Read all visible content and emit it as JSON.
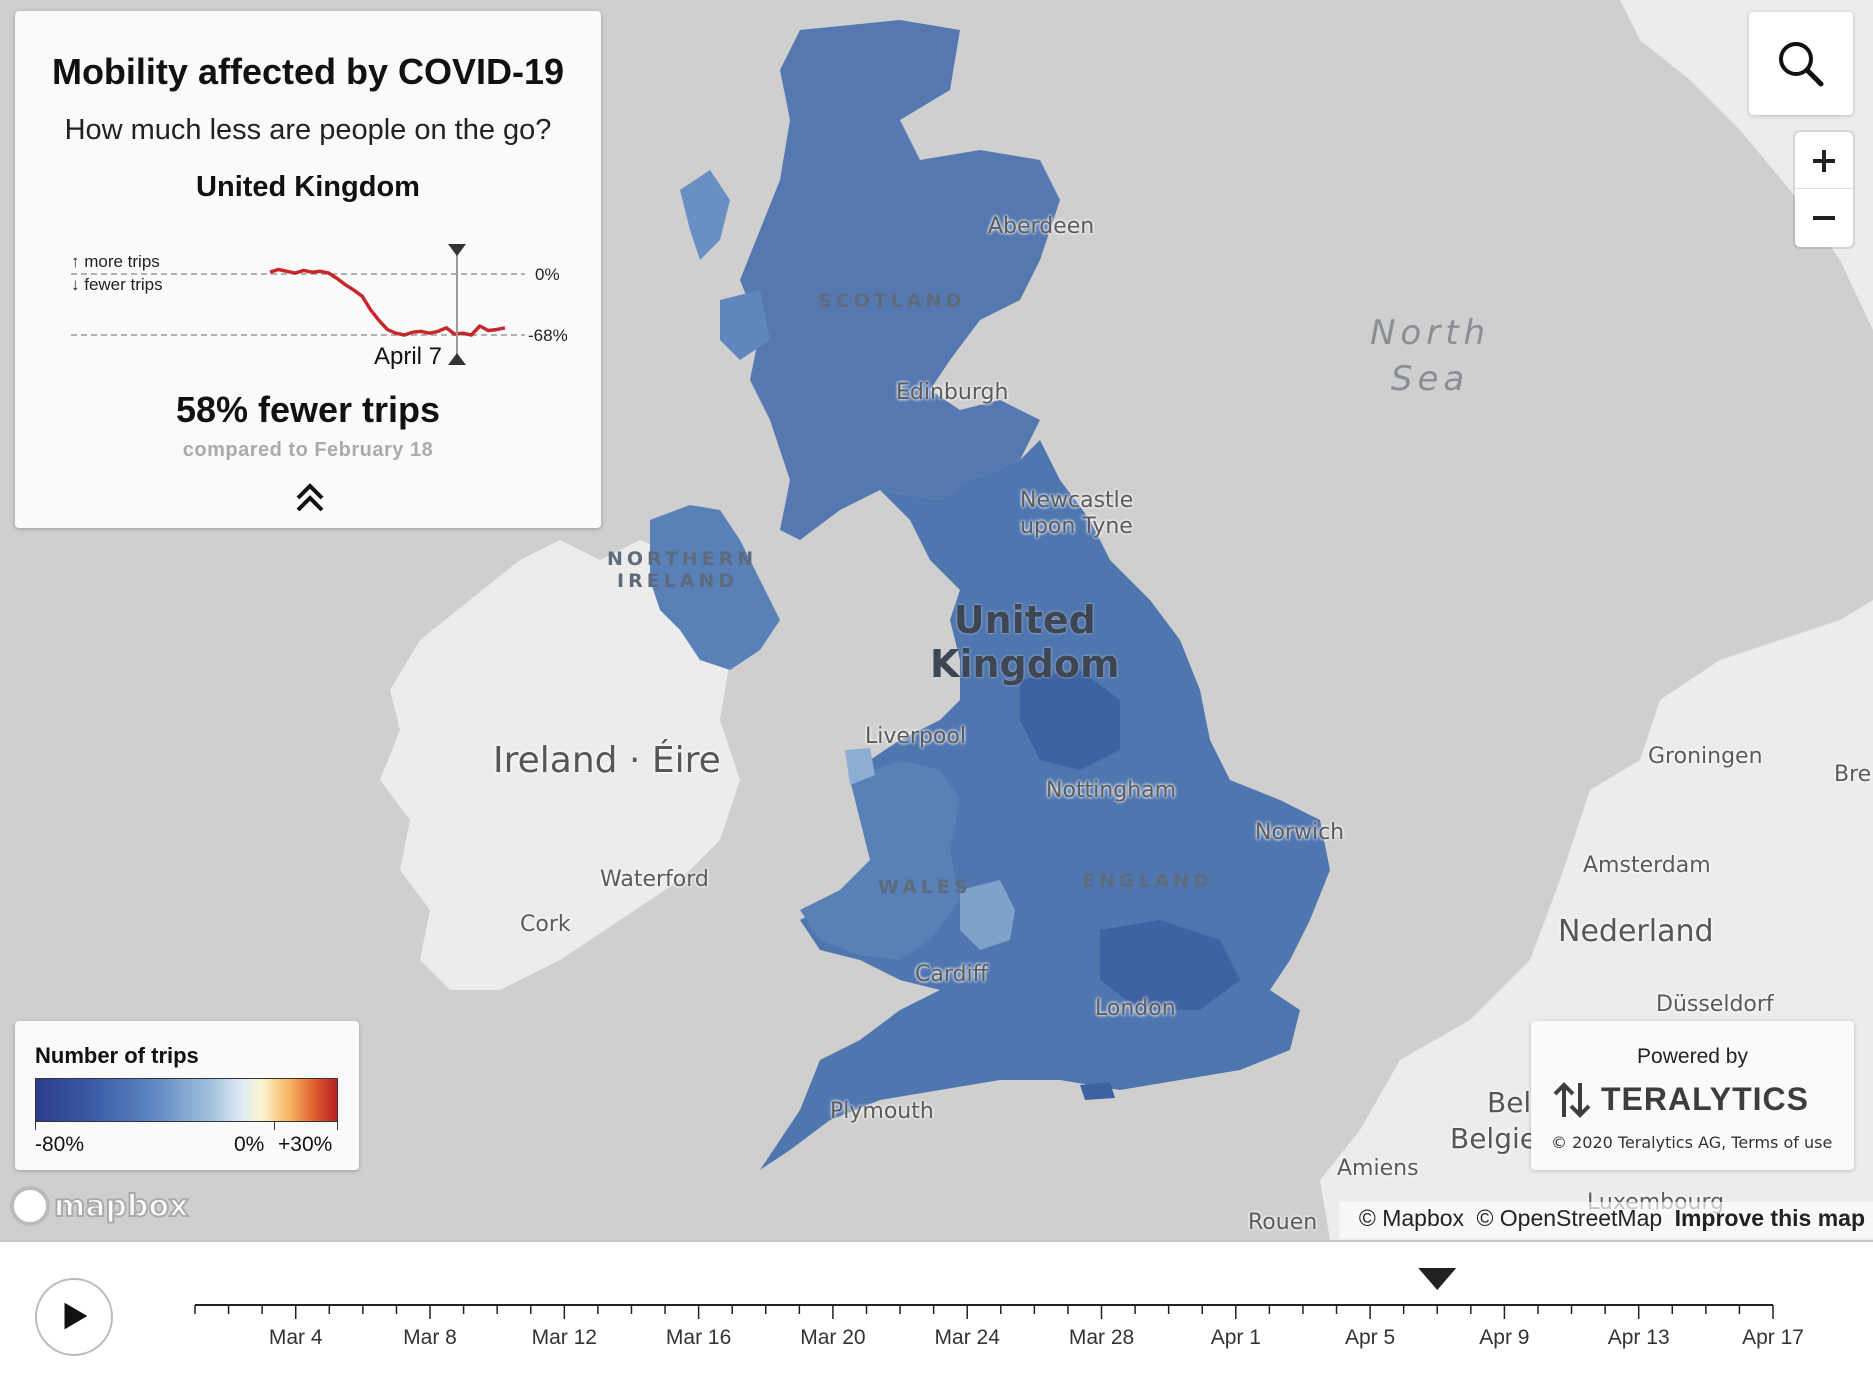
{
  "panel": {
    "title": "Mobility affected by COVID-19",
    "subtitle": "How much less are people on the go?",
    "region": "United Kingdom",
    "sparkline": {
      "more_label": "↑ more trips",
      "fewer_label": "↓ fewer trips",
      "top_ref": "0%",
      "bottom_ref": "-68%",
      "selected_date_label": "April 7",
      "values": [
        2,
        5,
        3,
        1,
        4,
        2,
        3,
        1,
        -5,
        -12,
        -18,
        -25,
        -40,
        -52,
        -62,
        -66,
        -68,
        -65,
        -64,
        -66,
        -64,
        -60,
        -67,
        -66,
        -68,
        -58,
        -63,
        -62,
        -60
      ]
    },
    "headline": "58% fewer trips",
    "comparison": "compared to February 18",
    "collapse_icon": "double-chevron-up-icon"
  },
  "map_controls": {
    "search_icon": "search-icon",
    "zoom_in_icon": "plus-icon",
    "zoom_out_icon": "minus-icon"
  },
  "map_labels": {
    "north_sea": [
      "North",
      "Sea"
    ],
    "scotland": "SCOTLAND",
    "northern_ireland": [
      "NORTHERN",
      "IRELAND"
    ],
    "wales": "WALES",
    "england": "ENGLAND",
    "uk": [
      "United",
      "Kingdom"
    ],
    "ireland": "Ireland · Éire",
    "nederland": "Nederland",
    "belgie": "Belgi",
    "belgie2": "Belgie",
    "cities": {
      "aberdeen": "Aberdeen",
      "edinburgh": "Edinburgh",
      "newcastle": [
        "Newcastle",
        "upon Tyne"
      ],
      "liverpool": "Liverpool",
      "nottingham": "Nottingham",
      "norwich": "Norwich",
      "cardiff": "Cardiff",
      "london": "London",
      "plymouth": "Plymouth",
      "waterford": "Waterford",
      "cork": "Cork",
      "groningen": "Groningen",
      "amsterdam": "Amsterdam",
      "dusseldorf": "Düsseldorf",
      "amiens": "Amiens",
      "rouen": "Rouen",
      "luxembourg": "Luxembourg",
      "bre": "Bre"
    }
  },
  "legend": {
    "title": "Number of trips",
    "ticks": [
      "-80%",
      "0%",
      "+30%"
    ]
  },
  "powered": {
    "label": "Powered by",
    "brand": "TERALYTICS",
    "copyright": "© 2020 Teralytics AG, Terms of use"
  },
  "mapbox": {
    "wordmark": "mapbox"
  },
  "attribution": {
    "mapbox": "© Mapbox",
    "osm": "© OpenStreetMap",
    "improve": "Improve this map"
  },
  "timeline": {
    "play_icon": "play-icon",
    "labels": [
      "Mar 4",
      "Mar 8",
      "Mar 12",
      "Mar 16",
      "Mar 20",
      "Mar 24",
      "Mar 28",
      "Apr 1",
      "Apr 5",
      "Apr 9",
      "Apr 13",
      "Apr 17"
    ],
    "start_date": "Mar 1",
    "end_date": "Apr 17",
    "selected_date": "Apr 7"
  },
  "colors": {
    "ocean": "#cfcfcf",
    "land": "#ececec",
    "uk_fill": "#5076b0",
    "sparkline_line": "#c6282b"
  }
}
